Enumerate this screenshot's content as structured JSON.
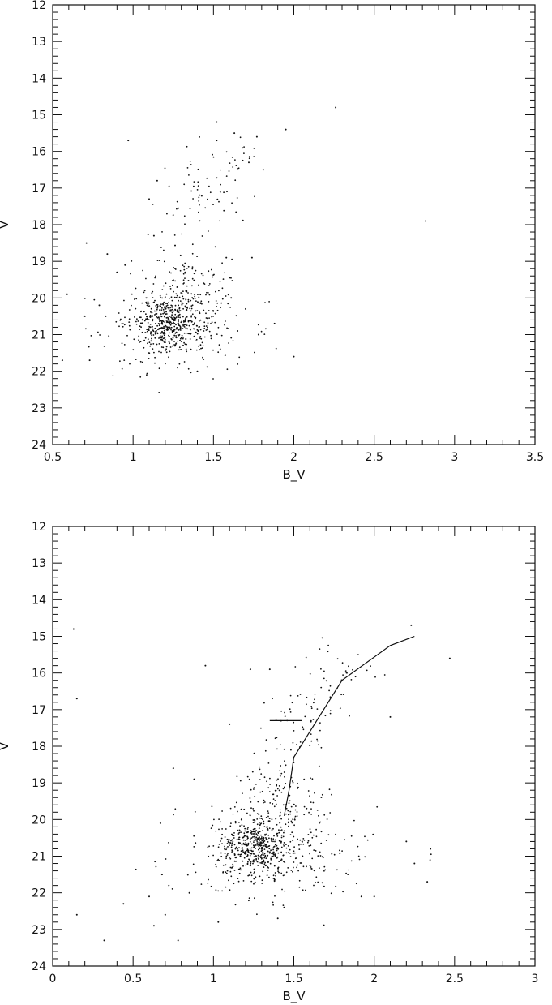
{
  "chart_data": [
    {
      "type": "scatter",
      "xlabel": "B_V",
      "ylabel": "V",
      "xlim": [
        0.5,
        3.5
      ],
      "ylim": [
        24,
        12
      ],
      "x_ticks": [
        "0.5",
        "1",
        "1.5",
        "2",
        "2.5",
        "3",
        "3.5"
      ],
      "y_ticks": [
        "12",
        "13",
        "14",
        "15",
        "16",
        "17",
        "18",
        "19",
        "20",
        "21",
        "22",
        "23",
        "24"
      ],
      "color": "#111111",
      "series": [
        {
          "type": "scatter",
          "points": [
            [
              0.97,
              15.7
            ],
            [
              1.52,
              15.2
            ],
            [
              1.95,
              15.4
            ],
            [
              2.26,
              14.8
            ],
            [
              2.82,
              17.9
            ],
            [
              1.52,
              15.7
            ],
            [
              1.63,
              15.5
            ],
            [
              1.68,
              15.9
            ],
            [
              1.77,
              15.6
            ],
            [
              1.72,
              16.3
            ],
            [
              1.81,
              16.5
            ],
            [
              1.1,
              17.3
            ],
            [
              1.15,
              16.8
            ],
            [
              1.13,
              18.3
            ],
            [
              0.71,
              18.5
            ],
            [
              0.84,
              18.8
            ],
            [
              1.58,
              18.9
            ],
            [
              1.74,
              18.9
            ],
            [
              1.88,
              20.7
            ],
            [
              2.0,
              21.6
            ],
            [
              0.59,
              19.9
            ],
            [
              0.7,
              20.5
            ],
            [
              0.73,
              21.7
            ],
            [
              0.56,
              21.7
            ],
            [
              0.79,
              20.2
            ],
            [
              0.83,
              20.5
            ],
            [
              1.65,
              20.9
            ],
            [
              1.78,
              21.0
            ],
            [
              1.7,
              20.3
            ],
            [
              1.4,
              22.0
            ],
            [
              0.95,
              19.1
            ],
            [
              0.9,
              19.3
            ],
            [
              1.61,
              20.0
            ]
          ]
        }
      ],
      "clusters": [
        {
          "center": [
            1.22,
            20.7
          ],
          "spread": [
            0.1,
            0.35
          ],
          "count": 340
        },
        {
          "center": [
            1.25,
            20.8
          ],
          "spread": [
            0.22,
            0.6
          ],
          "count": 260
        },
        {
          "center": [
            1.32,
            19.6
          ],
          "spread": [
            0.14,
            0.55
          ],
          "count": 150
        },
        {
          "center": [
            1.46,
            17.1
          ],
          "spread": [
            0.14,
            0.45
          ],
          "count": 55
        },
        {
          "center": [
            1.62,
            16.4
          ],
          "spread": [
            0.12,
            0.3
          ],
          "count": 20
        }
      ]
    },
    {
      "type": "scatter",
      "xlabel": "B_V",
      "ylabel": "V",
      "xlim": [
        0,
        3
      ],
      "ylim": [
        24,
        12
      ],
      "x_ticks": [
        "0",
        "0.5",
        "1",
        "1.5",
        "2",
        "2.5",
        "3"
      ],
      "y_ticks": [
        "12",
        "13",
        "14",
        "15",
        "16",
        "17",
        "18",
        "19",
        "20",
        "21",
        "22",
        "23",
        "24"
      ],
      "color": "#111111",
      "series": [
        {
          "type": "scatter",
          "points": [
            [
              0.13,
              14.8
            ],
            [
              0.15,
              16.7
            ],
            [
              0.32,
              23.3
            ],
            [
              0.44,
              22.3
            ],
            [
              0.63,
              22.9
            ],
            [
              0.78,
              23.3
            ],
            [
              0.15,
              22.6
            ],
            [
              0.6,
              22.1
            ],
            [
              2.47,
              15.6
            ],
            [
              2.23,
              14.7
            ],
            [
              2.1,
              17.2
            ],
            [
              2.33,
              21.7
            ],
            [
              2.35,
              20.8
            ],
            [
              2.25,
              21.2
            ],
            [
              2.2,
              20.6
            ],
            [
              2.0,
              22.1
            ],
            [
              1.92,
              22.1
            ],
            [
              0.95,
              15.8
            ],
            [
              1.1,
              17.4
            ],
            [
              0.75,
              18.6
            ],
            [
              0.88,
              18.9
            ],
            [
              1.03,
              22.8
            ],
            [
              1.35,
              15.9
            ],
            [
              1.23,
              15.9
            ],
            [
              0.67,
              20.1
            ],
            [
              0.68,
              21.5
            ],
            [
              0.85,
              22.0
            ],
            [
              0.7,
              22.6
            ],
            [
              1.4,
              22.7
            ]
          ]
        },
        {
          "type": "line",
          "points": [
            [
              1.44,
              19.9
            ],
            [
              1.47,
              19.2
            ],
            [
              1.5,
              18.3
            ],
            [
              1.6,
              17.6
            ],
            [
              1.8,
              16.2
            ],
            [
              2.1,
              15.25
            ],
            [
              2.25,
              15.0
            ]
          ]
        },
        {
          "type": "line",
          "points": [
            [
              1.35,
              17.3
            ],
            [
              1.55,
              17.3
            ]
          ]
        }
      ],
      "clusters": [
        {
          "center": [
            1.27,
            20.7
          ],
          "spread": [
            0.1,
            0.35
          ],
          "count": 380
        },
        {
          "center": [
            1.35,
            20.9
          ],
          "spread": [
            0.28,
            0.6
          ],
          "count": 330
        },
        {
          "center": [
            1.42,
            19.5
          ],
          "spread": [
            0.14,
            0.55
          ],
          "count": 140
        },
        {
          "center": [
            1.55,
            17.3
          ],
          "spread": [
            0.12,
            0.5
          ],
          "count": 60
        },
        {
          "center": [
            1.8,
            16.0
          ],
          "spread": [
            0.15,
            0.4
          ],
          "count": 35
        }
      ]
    }
  ]
}
